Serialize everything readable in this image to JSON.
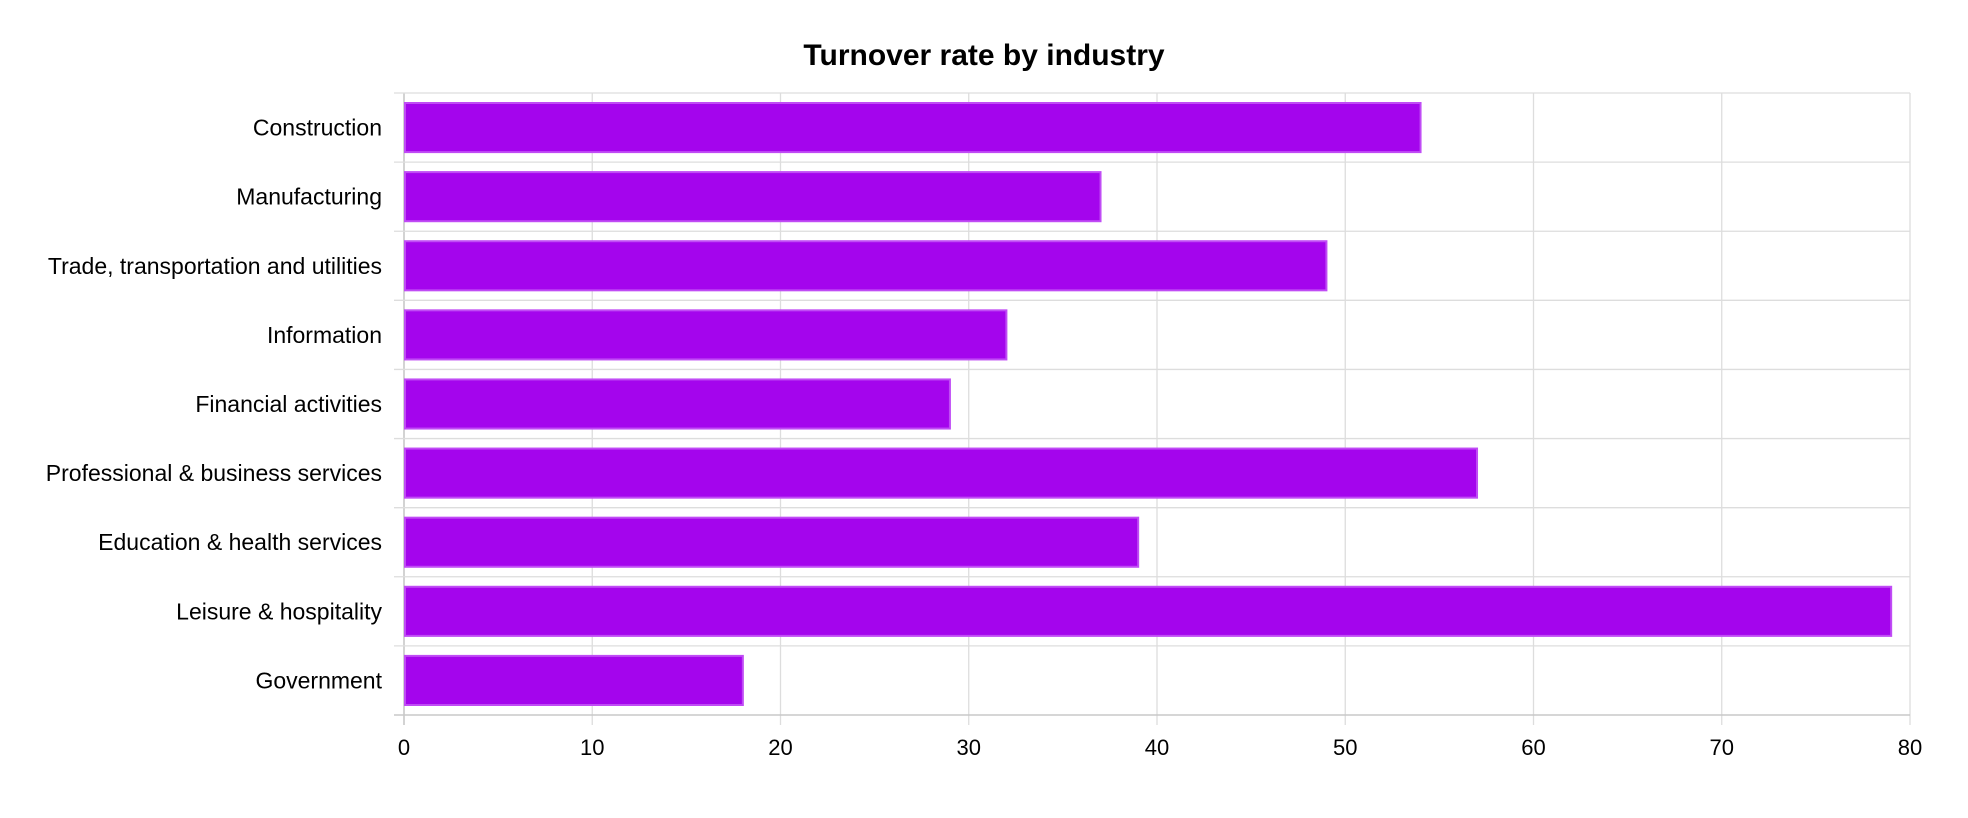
{
  "chart_data": {
    "type": "bar",
    "orientation": "horizontal",
    "title": "Turnover rate by industry",
    "xlabel": "",
    "ylabel": "",
    "categories": [
      "Construction",
      "Manufacturing",
      "Trade, transportation and utilities",
      "Information",
      "Financial activities",
      "Professional & business services",
      "Education & health services",
      "Leisure & hospitality",
      "Government"
    ],
    "values": [
      54,
      37,
      49,
      32,
      29,
      57,
      39,
      79,
      18
    ],
    "xlim": [
      0,
      80
    ],
    "x_ticks": [
      "0",
      "10",
      "20",
      "30",
      "40",
      "50",
      "60",
      "70",
      "80"
    ],
    "grid": true,
    "legend": "none",
    "colors": {
      "bar_fill": "#a405ed",
      "bar_stroke": "#c04cf5",
      "grid": "#dddddd",
      "axis": "#c8c8c8"
    }
  }
}
